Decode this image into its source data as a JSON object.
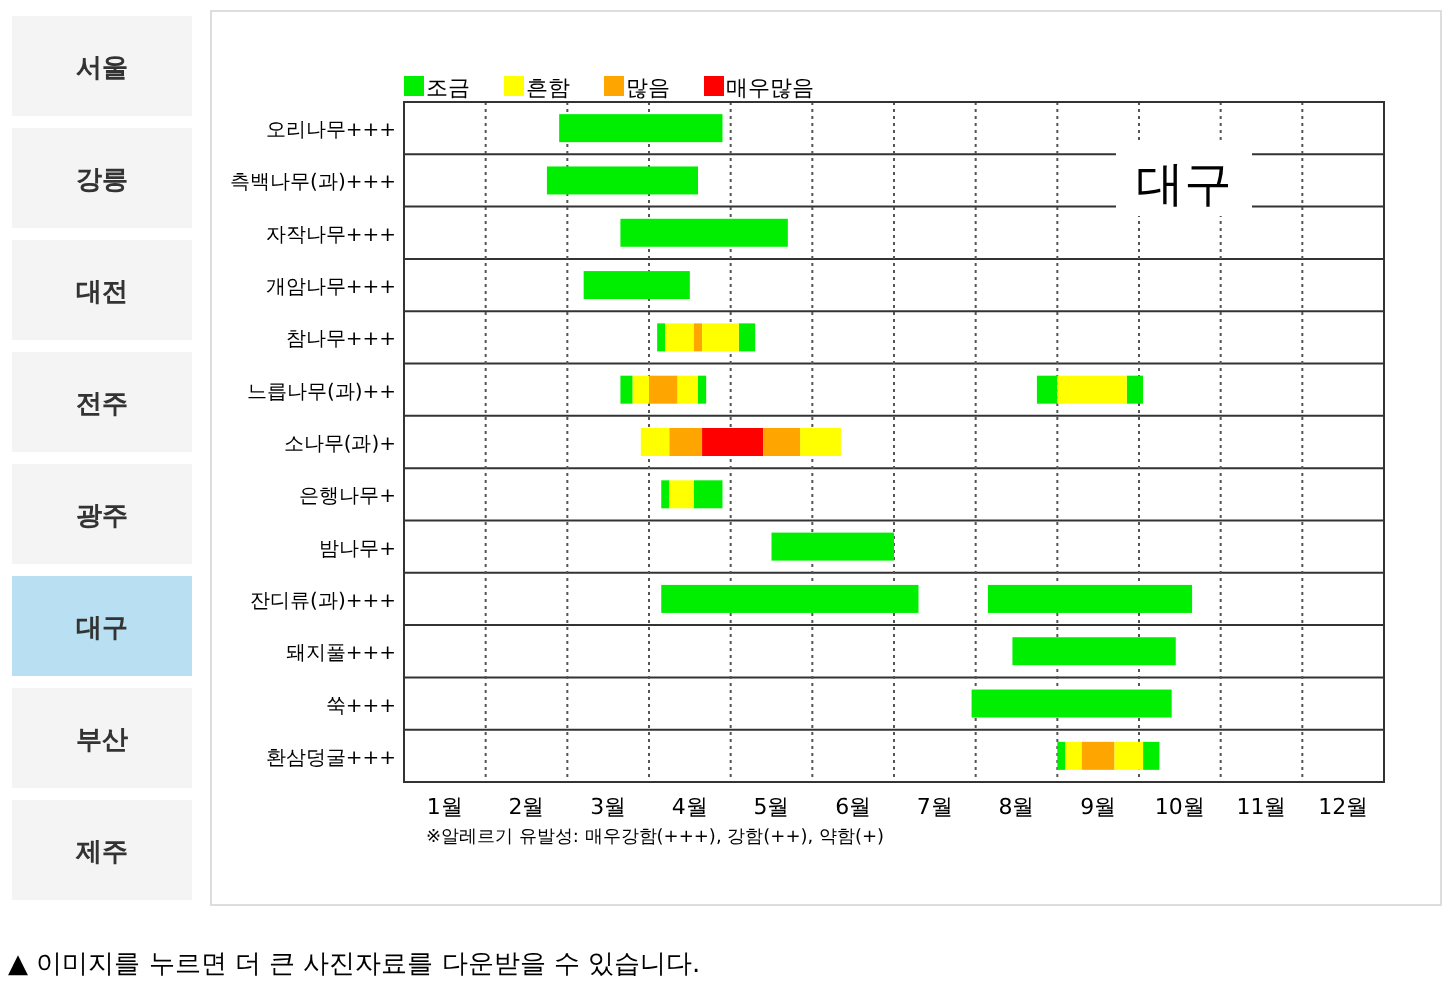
{
  "chart_data": {
    "type": "bar",
    "orientation": "horizontal",
    "title": "대구",
    "categories": [
      "오리나무+++",
      "측백나무(과)+++",
      "자작나무+++",
      "개암나무+++",
      "참나무+++",
      "느릅나무(과)++",
      "소나무(과)+",
      "은행나무+",
      "밤나무+",
      "잔디류(과)+++",
      "돼지풀+++",
      "쑥+++",
      "환삼덩굴+++"
    ],
    "xlim": [
      1,
      13
    ],
    "xticks": [
      {
        "value": 1.5,
        "label": "1월"
      },
      {
        "value": 2,
        "label": null
      },
      {
        "value": 2.5,
        "label": "2월"
      },
      {
        "value": 3,
        "label": null
      },
      {
        "value": 3.5,
        "label": "3월"
      },
      {
        "value": 4,
        "label": null
      },
      {
        "value": 4.5,
        "label": "4월"
      },
      {
        "value": 5,
        "label": null
      },
      {
        "value": 5.5,
        "label": "5월"
      },
      {
        "value": 6,
        "label": null
      },
      {
        "value": 6.5,
        "label": "6월"
      },
      {
        "value": 7,
        "label": null
      },
      {
        "value": 7.5,
        "label": "7월"
      },
      {
        "value": 8,
        "label": null
      },
      {
        "value": 8.5,
        "label": "8월"
      },
      {
        "value": 9,
        "label": null
      },
      {
        "value": 9.5,
        "label": "9월"
      },
      {
        "value": 10,
        "label": null
      },
      {
        "value": 10.5,
        "label": "10월"
      },
      {
        "value": 11,
        "label": null
      },
      {
        "value": 11.5,
        "label": "11월"
      },
      {
        "value": 12,
        "label": null
      },
      {
        "value": 12.5,
        "label": "12월"
      }
    ],
    "grid": true,
    "legend": "top left",
    "series": [
      {
        "name": "조금",
        "color": "#00ee00",
        "base": [
          2.9,
          2.75,
          3.65,
          3.2,
          4.1,
          3.65,
          null,
          4.15,
          5.5,
          4.15,
          8.45,
          7.95,
          9.0
        ],
        "values": [
          2.0,
          1.85,
          2.05,
          1.3,
          0.1,
          0.15,
          null,
          0.1,
          1.5,
          3.15,
          2.0,
          2.45,
          0.1
        ]
      },
      {
        "name": "흔함",
        "color": "#ffff00",
        "base": [
          null,
          null,
          null,
          null,
          4.2,
          3.8,
          3.9,
          4.25,
          null,
          null,
          null,
          null,
          9.1
        ],
        "values": [
          null,
          null,
          null,
          null,
          0.35,
          0.2,
          0.35,
          0.3,
          null,
          null,
          null,
          null,
          0.2
        ]
      },
      {
        "name": "많음",
        "color": "#ffa500",
        "base": [
          null,
          null,
          null,
          null,
          4.55,
          4.0,
          4.25,
          null,
          null,
          null,
          null,
          null,
          9.3
        ],
        "values": [
          null,
          null,
          null,
          null,
          0.1,
          0.35,
          0.4,
          null,
          null,
          null,
          null,
          null,
          0.4
        ]
      },
      {
        "name": "매우많음",
        "color": "#ff0000",
        "base": [
          null,
          null,
          null,
          null,
          null,
          null,
          4.65,
          null,
          null,
          null,
          null,
          null,
          null
        ],
        "values": [
          null,
          null,
          null,
          null,
          null,
          null,
          0.75,
          null,
          null,
          null,
          null,
          null,
          null
        ]
      },
      {
        "color": "#00ee00",
        "base": [
          null,
          null,
          null,
          null,
          5.1,
          4.6,
          null,
          4.55,
          null,
          8.15,
          null,
          null,
          10.05
        ],
        "values": [
          null,
          null,
          null,
          null,
          0.2,
          0.1,
          null,
          0.35,
          null,
          2.5,
          null,
          null,
          0.2
        ]
      },
      {
        "color": "#00ee00",
        "base": [
          null,
          null,
          null,
          null,
          null,
          8.75,
          null,
          null,
          null,
          null,
          null,
          null,
          null
        ],
        "values": [
          null,
          null,
          null,
          null,
          null,
          0.25,
          null,
          null,
          null,
          null,
          null,
          null,
          null
        ]
      },
      {
        "color": "#00ee00",
        "base": [
          null,
          null,
          null,
          null,
          null,
          9.85,
          null,
          null,
          null,
          null,
          null,
          null,
          null
        ],
        "values": [
          null,
          null,
          null,
          null,
          null,
          0.2,
          null,
          null,
          null,
          null,
          null,
          null,
          null
        ]
      },
      {
        "color": "#ffff00",
        "base": [
          null,
          null,
          null,
          null,
          4.65,
          4.35,
          5.85,
          null,
          null,
          null,
          null,
          null,
          9.7
        ],
        "values": [
          null,
          null,
          null,
          null,
          0.45,
          0.25,
          0.5,
          null,
          null,
          null,
          null,
          null,
          0.35
        ]
      },
      {
        "color": "#ffff00",
        "base": [
          null,
          null,
          null,
          null,
          null,
          9.0,
          null,
          null,
          null,
          null,
          null,
          null,
          null
        ],
        "values": [
          null,
          null,
          null,
          null,
          null,
          0.85,
          null,
          null,
          null,
          null,
          null,
          null,
          null
        ]
      },
      {
        "color": "#ffa500",
        "base": [
          null,
          null,
          null,
          null,
          null,
          null,
          5.4,
          null,
          null,
          null,
          null,
          null,
          null
        ],
        "values": [
          null,
          null,
          null,
          null,
          null,
          null,
          0.45,
          null,
          null,
          null,
          null,
          null,
          null
        ]
      }
    ],
    "annotations": [
      "※알레르기 유발성: 매우강함(+++), 강함(++), 약함(+)",
      "▲ 이미지를 누르면 더 큰 사진자료를 다운받을 수 있습니다.",
      "서울",
      "강릉",
      "대전",
      "전주",
      "광주",
      "대구",
      "부산",
      "제주"
    ]
  }
}
